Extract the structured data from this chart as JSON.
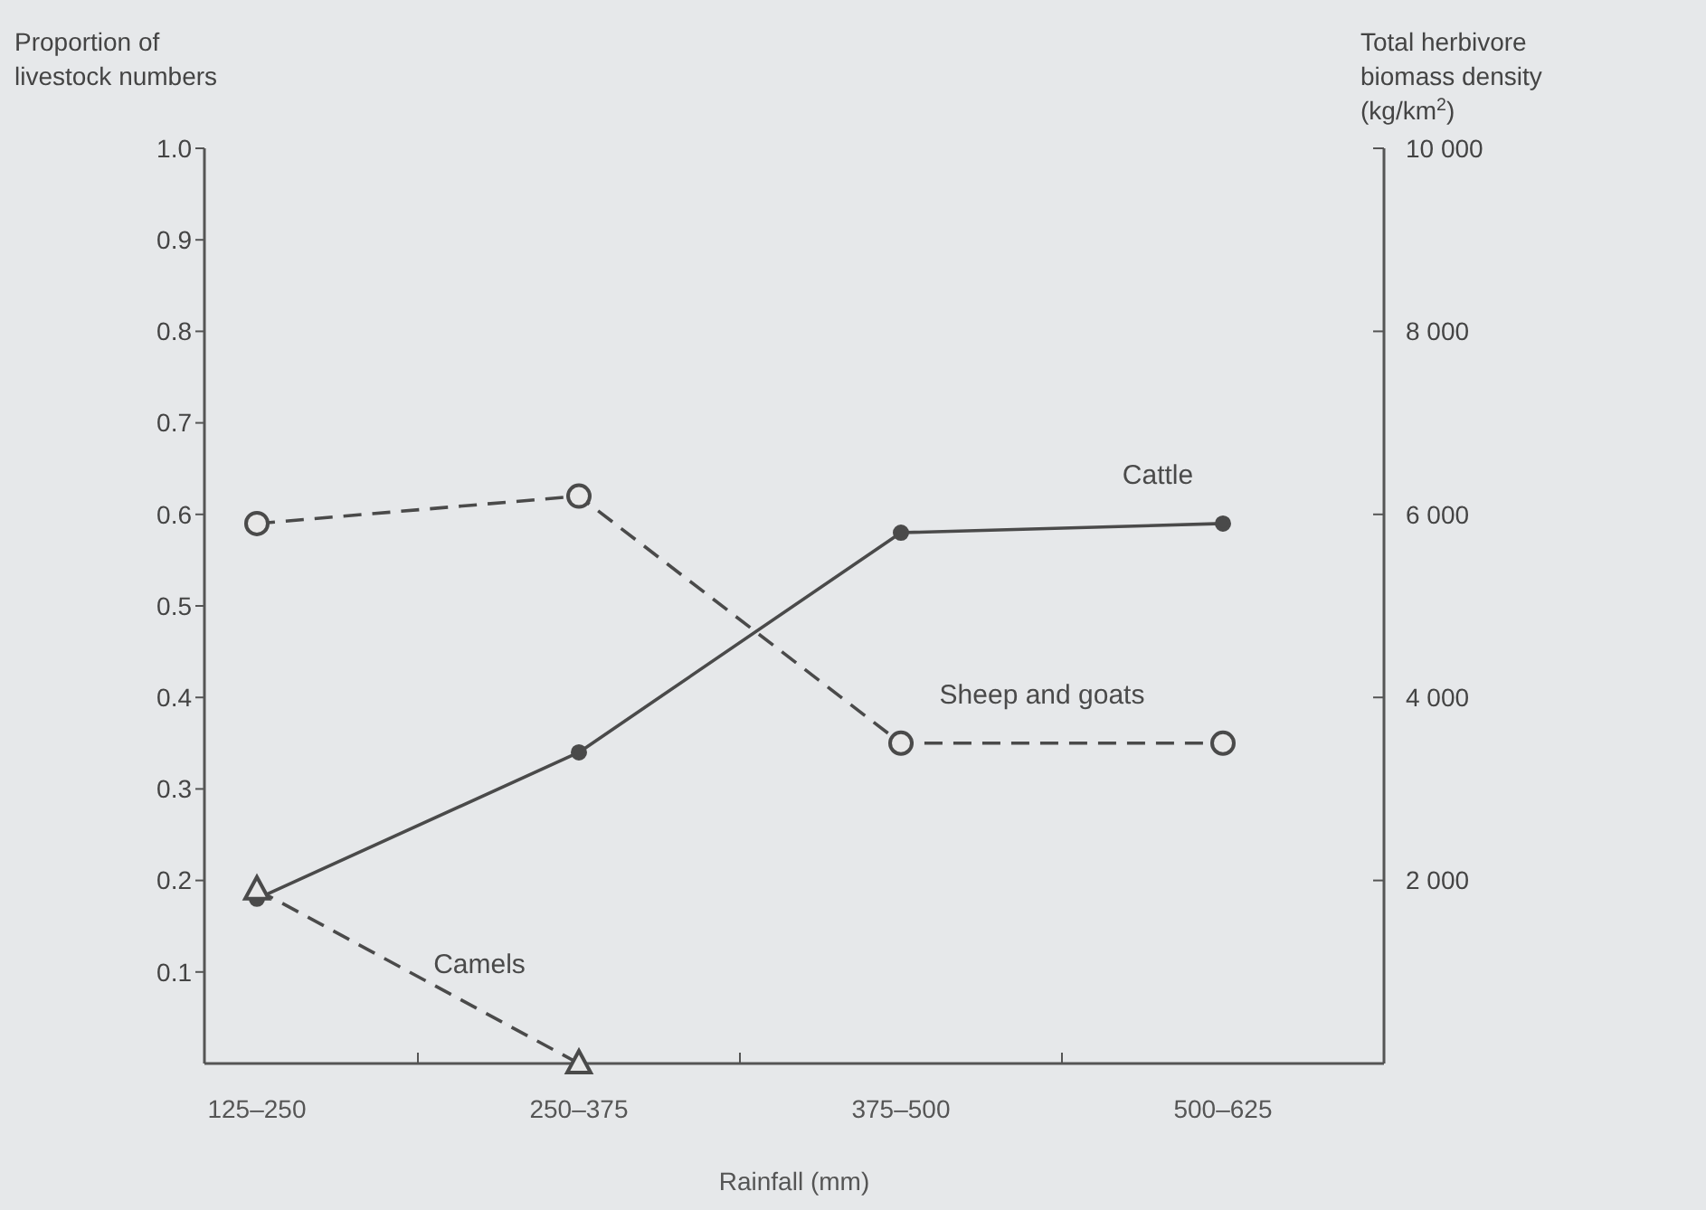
{
  "chart_data": {
    "type": "line",
    "xlabel": "Rainfall (mm)",
    "ylabel": "Proportion of livestock numbers",
    "y2label": "Total herbivore biomass density (kg/km$^{2}$)",
    "categories": [
      "125–250",
      "250–375",
      "375–500",
      "500–625"
    ],
    "series": [
      {
        "name": "Cattle",
        "color": "#4a4a4a",
        "values": [
          0.18,
          0.34,
          0.58,
          0.59
        ],
        "marker": "circle",
        "line_style": "solid"
      },
      {
        "name": "Sheep and goats",
        "color": "#4a4a4a",
        "values": [
          0.59,
          0.62,
          0.35,
          0.35
        ],
        "marker": "circle",
        "line_style": "dashed"
      },
      {
        "name": "Camels",
        "color": "#4a4a4a",
        "values": [
          0.19,
          0.0,
          null,
          null
        ],
        "marker": "triangle",
        "line_style": "dashed"
      }
    ],
    "ylim": [
      0,
      1
    ],
    "yticks": [
      {
        "value": 0.1,
        "label": "0.1"
      },
      {
        "value": 0.2,
        "label": "0.2"
      },
      {
        "value": 0.3,
        "label": "0.3"
      },
      {
        "value": 0.4,
        "label": "0.4"
      },
      {
        "value": 0.5,
        "label": "0.5"
      },
      {
        "value": 0.6,
        "label": "0.6"
      },
      {
        "value": 0.7,
        "label": "0.7"
      },
      {
        "value": 0.8,
        "label": "0.8"
      },
      {
        "value": 0.9,
        "label": "0.9"
      },
      {
        "value": 1,
        "label": "1.0"
      }
    ],
    "y2lim": [
      0,
      10000
    ],
    "y2ticks": [
      {
        "value": 2000,
        "label": "2 000"
      },
      {
        "value": 4000,
        "label": "4 000"
      },
      {
        "value": 6000,
        "label": "6 000"
      },
      {
        "value": 8000,
        "label": "8 000"
      },
      {
        "value": 10000,
        "label": "10 000"
      }
    ],
    "grid": false
  }
}
